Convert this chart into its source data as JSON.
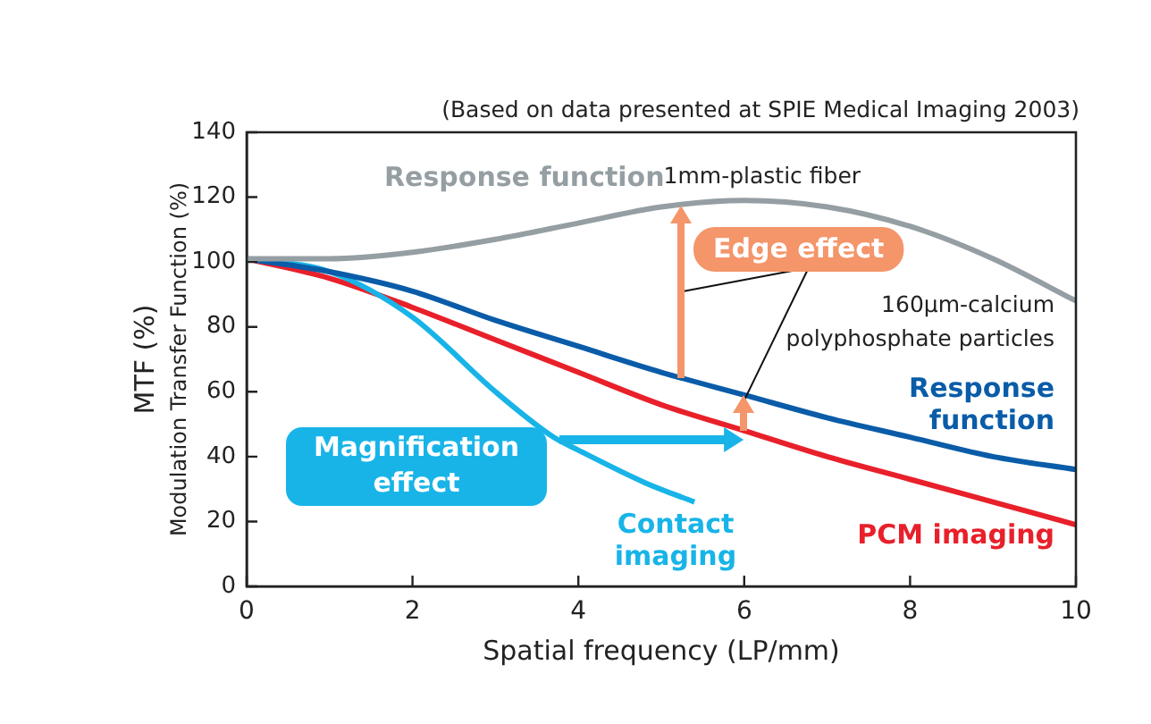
{
  "chart_data": {
    "type": "line",
    "xlabel": "Spatial frequency (LP/mm)",
    "ylabel": "MTF (%)",
    "xlim": [
      0,
      10
    ],
    "xticks": [
      0,
      2,
      4,
      6,
      8,
      10
    ],
    "ylim": [
      0,
      140
    ],
    "yticks": [
      0,
      20,
      40,
      60,
      80,
      100,
      120,
      140
    ],
    "grid": false,
    "legend": false,
    "marker": "none",
    "line_style": "solid",
    "series": [
      {
        "name": "Response function",
        "color": "#959ea3",
        "x": [
          0,
          1,
          2,
          3,
          4,
          5,
          6,
          7,
          8,
          9,
          10
        ],
        "values": [
          101,
          101,
          103,
          107,
          112,
          117,
          119,
          117,
          111,
          101,
          88
        ]
      },
      {
        "name": "Response function",
        "color": "#0a5ca8",
        "x": [
          0,
          1,
          2,
          3,
          4,
          5,
          6,
          7,
          8,
          9,
          10
        ],
        "values": [
          101,
          97,
          91,
          82,
          74,
          66,
          59,
          52,
          46,
          40,
          36
        ]
      },
      {
        "name": "Contact imaging",
        "color": "#18b4e8",
        "x": [
          0,
          1,
          2,
          3,
          3.7,
          4,
          4.8,
          5.4
        ],
        "values": [
          101,
          97,
          83,
          60,
          46,
          42,
          32,
          26
        ]
      },
      {
        "name": "PCM imaging",
        "color": "#e8202a",
        "x": [
          0,
          1,
          2,
          3,
          4,
          5,
          6,
          7,
          8,
          9,
          10
        ],
        "values": [
          101,
          95,
          86,
          76,
          66,
          56,
          48,
          40,
          33,
          26,
          19
        ]
      }
    ],
    "annotations": [
      "(Based on data presented at SPIE Medical Imaging 2003)",
      "Modulation Transfer Function (%)",
      {
        "text": "1mm-plastic fiber",
        "x": 6,
        "y": 119
      },
      "160μm-calcium polyphosphate particles",
      {
        "text": "Edge effect",
        "x": 6,
        "y": 59
      },
      "Magnification effect"
    ]
  }
}
